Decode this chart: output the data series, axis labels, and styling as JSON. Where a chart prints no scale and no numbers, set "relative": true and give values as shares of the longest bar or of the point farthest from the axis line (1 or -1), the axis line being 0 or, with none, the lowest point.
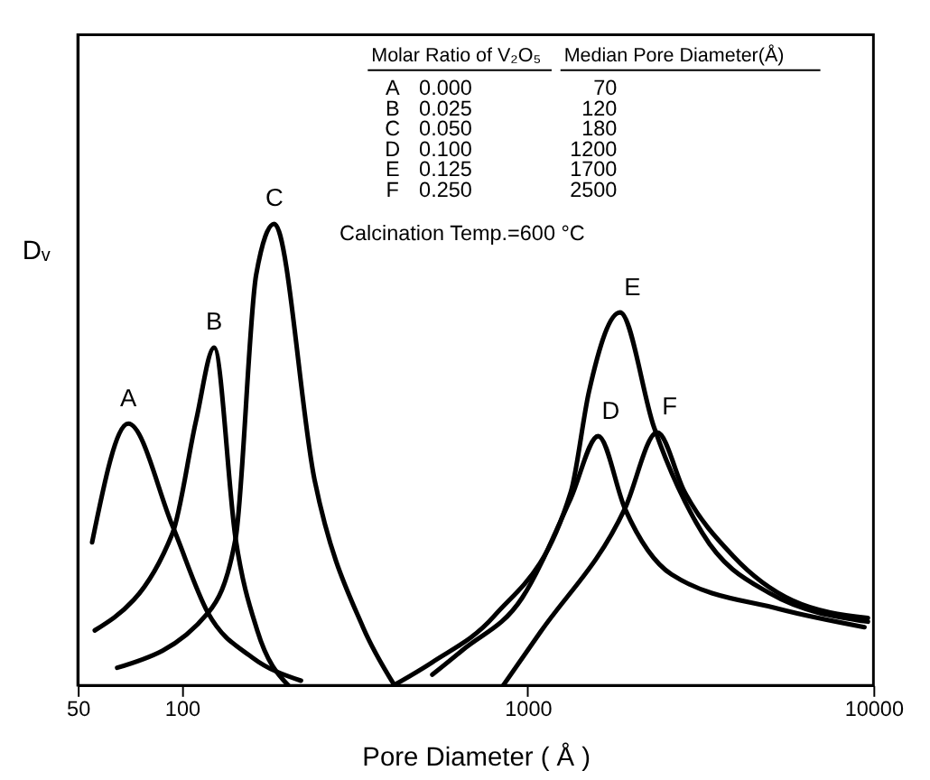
{
  "chart_data": {
    "type": "line",
    "relative": true,
    "xlabel": "Pore Diameter ( Å )",
    "ylabel": "Dᵥ",
    "log": "x",
    "xlim": [
      50,
      10000
    ],
    "xticks": [
      50,
      100,
      1000,
      10000
    ],
    "grid": false,
    "marker": "none",
    "line_style": "solid",
    "series": [
      {
        "name": "A",
        "color": "#000000",
        "x": [
          55,
          70,
          94,
          119,
          160,
          221
        ],
        "values": [
          0.31,
          0.567,
          0.345,
          0.157,
          0.06,
          0.01
        ]
      },
      {
        "name": "B",
        "color": "#000000",
        "x": [
          56,
          94,
          110,
          124,
          143,
          165,
          203
        ],
        "values": [
          0.119,
          0.33,
          0.575,
          0.732,
          0.318,
          0.12,
          0.0
        ]
      },
      {
        "name": "C",
        "color": "#000000",
        "x": [
          65,
          119,
          143,
          164,
          185,
          242,
          334,
          412
        ],
        "values": [
          0.038,
          0.157,
          0.318,
          0.89,
          1.0,
          0.445,
          0.126,
          0.0
        ]
      },
      {
        "name": "D",
        "color": "#000000",
        "x": [
          530,
          650,
          965,
          1334,
          1600,
          1911,
          2610,
          5360,
          9420
        ],
        "values": [
          0.023,
          0.077,
          0.19,
          0.406,
          0.54,
          0.383,
          0.24,
          0.165,
          0.126
        ]
      },
      {
        "name": "E",
        "color": "#000000",
        "x": [
          410,
          530,
          800,
          1334,
          1504,
          1850,
          2318,
          3200,
          5000,
          9640
        ],
        "values": [
          0.0,
          0.05,
          0.15,
          0.42,
          0.636,
          0.808,
          0.56,
          0.33,
          0.2,
          0.138
        ]
      },
      {
        "name": "F",
        "color": "#000000",
        "x": [
          850,
          1088,
          1911,
          2370,
          2840,
          3930,
          5830,
          9640
        ],
        "values": [
          0.0,
          0.115,
          0.383,
          0.548,
          0.42,
          0.28,
          0.184,
          0.146
        ]
      }
    ],
    "annotations": [
      "Molar Ratio of V₂O₅",
      "Median Pore Diameter(Å)",
      "A",
      "0.000",
      "70",
      "B",
      "0.025",
      "120",
      "C",
      "0.050",
      "180",
      "D",
      "0.100",
      "1200",
      "E",
      "0.125",
      "1700",
      "F",
      "0.250",
      "2500",
      "Calcination Temp.=600 °C"
    ]
  }
}
